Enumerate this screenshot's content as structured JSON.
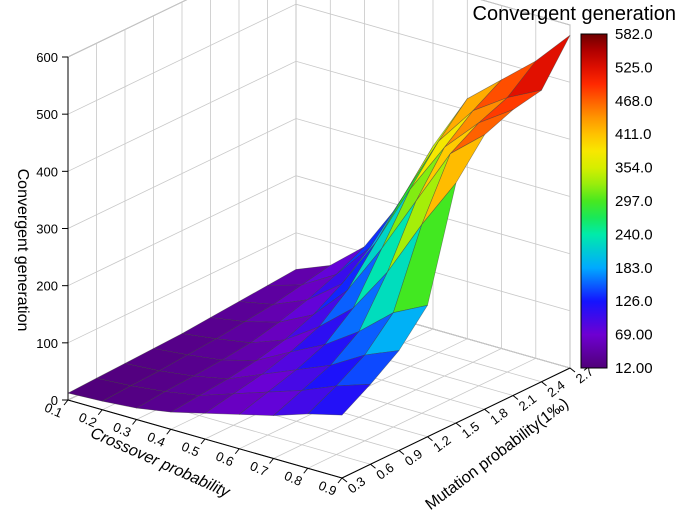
{
  "chart_data": {
    "type": "surface3d",
    "title": "",
    "xlabel": "Crossover probability",
    "ylabel": "Mutation probability(1‰)",
    "zlabel": "Convergent generation",
    "x_ticks": [
      "0.1",
      "0.2",
      "0.3",
      "0.4",
      "0.5",
      "0.6",
      "0.7",
      "0.8",
      "0.9"
    ],
    "y_ticks": [
      "0.3",
      "0.6",
      "0.9",
      "1.2",
      "1.5",
      "1.8",
      "2.1",
      "2.4",
      "2.7"
    ],
    "z_ticks": [
      "0",
      "100",
      "200",
      "300",
      "400",
      "500",
      "600"
    ],
    "zlim": [
      0,
      600
    ],
    "x": [
      0.1,
      0.2,
      0.3,
      0.4,
      0.5,
      0.6,
      0.7,
      0.8,
      0.9
    ],
    "y": [
      0.3,
      0.6,
      0.9,
      1.2,
      1.5,
      1.8,
      2.1,
      2.4,
      2.7
    ],
    "z": [
      [
        12,
        15,
        20,
        30,
        45,
        60,
        75,
        95,
        110
      ],
      [
        14,
        18,
        25,
        35,
        55,
        75,
        95,
        120,
        140
      ],
      [
        16,
        20,
        28,
        40,
        65,
        90,
        115,
        150,
        175
      ],
      [
        18,
        24,
        32,
        48,
        80,
        110,
        150,
        200,
        230
      ],
      [
        20,
        28,
        38,
        60,
        100,
        150,
        230,
        330,
        420
      ],
      [
        24,
        34,
        50,
        80,
        140,
        230,
        330,
        430,
        480
      ],
      [
        28,
        40,
        65,
        110,
        200,
        310,
        400,
        460,
        500
      ],
      [
        32,
        50,
        85,
        150,
        260,
        370,
        440,
        480,
        510
      ],
      [
        36,
        60,
        110,
        200,
        320,
        420,
        470,
        520,
        582
      ]
    ],
    "colorbar": {
      "title": "Convergent generation",
      "ticks": [
        "582.0",
        "525.0",
        "468.0",
        "411.0",
        "354.0",
        "297.0",
        "240.0",
        "183.0",
        "126.0",
        "69.00",
        "12.00"
      ],
      "min": 12,
      "max": 582,
      "colormap": "rainbow"
    },
    "grid": true
  }
}
